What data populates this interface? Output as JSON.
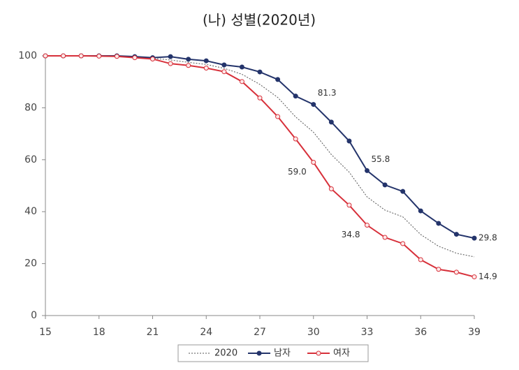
{
  "chart_data": {
    "type": "line",
    "title": "(나) 성별(2020년)",
    "x": [
      15,
      16,
      17,
      18,
      19,
      20,
      21,
      22,
      23,
      24,
      25,
      26,
      27,
      28,
      29,
      30,
      31,
      32,
      33,
      34,
      35,
      36,
      37,
      38,
      39
    ],
    "xlim": [
      15,
      39
    ],
    "xticks": [
      15,
      18,
      21,
      24,
      27,
      30,
      33,
      36,
      39
    ],
    "ylim": [
      0,
      100
    ],
    "yticks": [
      0,
      20,
      40,
      60,
      80,
      100
    ],
    "series": [
      {
        "name": "2020",
        "color": "#555555",
        "style": "dotted",
        "values": [
          100,
          100,
          100,
          100,
          100,
          99.5,
          99.1,
          98.4,
          97.5,
          96.7,
          95.2,
          92.9,
          89.0,
          84.0,
          76.5,
          70.6,
          62.0,
          55.2,
          45.7,
          40.6,
          38.0,
          31.2,
          26.7,
          24.0,
          22.6
        ]
      },
      {
        "name": "남자",
        "color": "#24346b",
        "style": "solid",
        "marker": "filled",
        "values": [
          100,
          100,
          100,
          100,
          100,
          99.7,
          99.3,
          99.7,
          98.7,
          98.1,
          96.5,
          95.7,
          93.8,
          90.9,
          84.5,
          81.3,
          74.5,
          67.2,
          55.8,
          50.3,
          47.8,
          40.3,
          35.5,
          31.3,
          29.8
        ],
        "value_labels": [
          null,
          null,
          null,
          null,
          null,
          null,
          null,
          null,
          null,
          null,
          null,
          null,
          null,
          null,
          null,
          "81.3",
          null,
          null,
          "55.8",
          null,
          null,
          null,
          null,
          null,
          "29.8"
        ]
      },
      {
        "name": "여자",
        "color": "#d7303a",
        "style": "solid",
        "marker": "open",
        "values": [
          100,
          100,
          100,
          99.9,
          99.8,
          99.3,
          98.8,
          97.0,
          96.3,
          95.3,
          93.9,
          90.1,
          83.8,
          76.6,
          68.0,
          59.0,
          48.8,
          42.5,
          34.8,
          30.1,
          27.7,
          21.5,
          17.8,
          16.7,
          14.9
        ],
        "value_labels": [
          null,
          null,
          null,
          null,
          null,
          null,
          null,
          null,
          null,
          null,
          null,
          null,
          null,
          null,
          null,
          "59.0",
          null,
          null,
          "34.8",
          null,
          null,
          null,
          null,
          null,
          "14.9"
        ]
      }
    ]
  }
}
